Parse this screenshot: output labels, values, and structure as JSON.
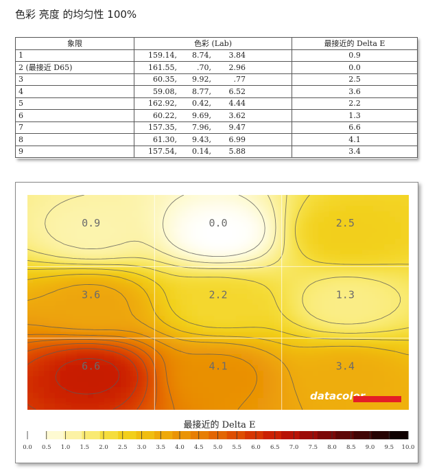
{
  "title": "色彩 亮度 的均匀性 100%",
  "table": {
    "headers": [
      "象限",
      "色彩 (Lab)",
      "最接近的 Delta E"
    ],
    "rows": [
      {
        "q": "1",
        "lab": [
          "159.14,",
          "8.74,",
          "3.84"
        ],
        "de": "0.9"
      },
      {
        "q": "2 (最接近 D65)",
        "lab": [
          "161.55,",
          ".70,",
          "2.96"
        ],
        "de": "0.0"
      },
      {
        "q": "3",
        "lab": [
          "60.35,",
          "9.92,",
          ".77"
        ],
        "de": "2.5"
      },
      {
        "q": "4",
        "lab": [
          "59.08,",
          "8.77,",
          "6.52"
        ],
        "de": "3.6"
      },
      {
        "q": "5",
        "lab": [
          "162.92,",
          "0.42,",
          "4.44"
        ],
        "de": "2.2"
      },
      {
        "q": "6",
        "lab": [
          "60.22,",
          "9.69,",
          "3.62"
        ],
        "de": "1.3"
      },
      {
        "q": "7",
        "lab": [
          "157.35,",
          "7.96,",
          "9.47"
        ],
        "de": "6.6"
      },
      {
        "q": "8",
        "lab": [
          "61.30,",
          "9.43,",
          "6.99"
        ],
        "de": "4.1"
      },
      {
        "q": "9",
        "lab": [
          "157.54,",
          "0.14,",
          "5.88"
        ],
        "de": "3.4"
      }
    ]
  },
  "chart_data": {
    "type": "heatmap",
    "grid_rows": 3,
    "grid_cols": 3,
    "cell_values": [
      [
        0.9,
        0.0,
        2.5
      ],
      [
        3.6,
        2.2,
        1.3
      ],
      [
        6.6,
        4.1,
        3.4
      ]
    ],
    "cell_labels": [
      [
        "0.9",
        "0.0",
        "2.5"
      ],
      [
        "3.6",
        "2.2",
        "1.3"
      ],
      [
        "6.6",
        "4.1",
        "3.4"
      ]
    ],
    "color_scale": {
      "label": "最接近的 Delta E",
      "min": 0.0,
      "max": 10.0,
      "ticks": [
        "0.0",
        "0.5",
        "1.0",
        "1.5",
        "2.0",
        "2.5",
        "3.0",
        "3.5",
        "4.0",
        "4.5",
        "5.0",
        "5.5",
        "6.0",
        "6.5",
        "7.0",
        "7.5",
        "8.0",
        "8.5",
        "9.0",
        "9.5",
        "10.0"
      ],
      "colors": [
        "#ffffff",
        "#fefad2",
        "#fcf2a4",
        "#f9ea72",
        "#f5dd3c",
        "#f2cf1a",
        "#f0bd10",
        "#eea90a",
        "#ea9406",
        "#e77e04",
        "#e36603",
        "#de4e02",
        "#d63602",
        "#cb2003",
        "#b81206",
        "#9c0b08",
        "#7c0808",
        "#5e0606",
        "#420505",
        "#260303",
        "#0f0101"
      ]
    },
    "watermark": "datacolor"
  }
}
